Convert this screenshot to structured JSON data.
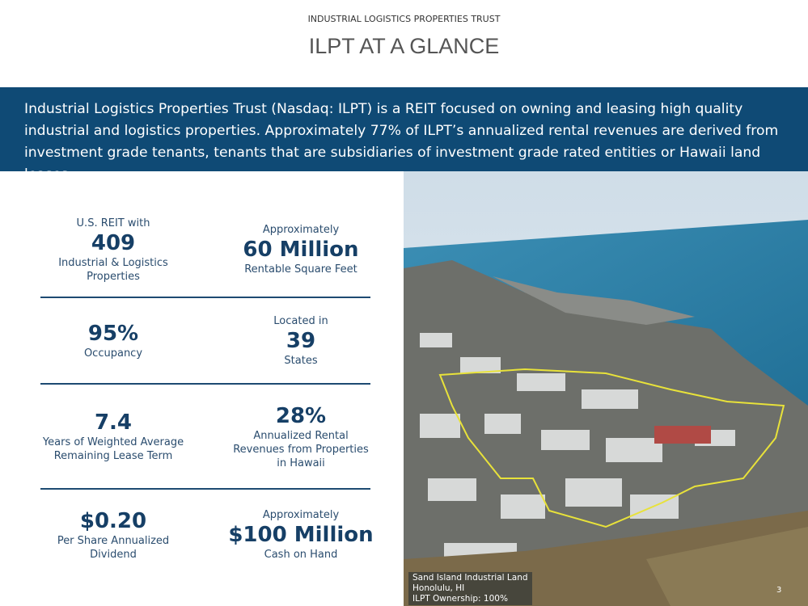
{
  "header": {
    "company": "INDUSTRIAL LOGISTICS PROPERTIES TRUST",
    "title": "ILPT AT A GLANCE"
  },
  "banner": {
    "text": "Industrial Logistics Properties Trust (Nasdaq: ILPT) is a REIT focused on owning and leasing high quality industrial and logistics properties.  Approximately 77% of ILPT’s annualized rental revenues are derived from investment grade tenants, tenants that are subsidiaries of investment grade rated entities or Hawaii land leases."
  },
  "stats": [
    {
      "prefix": "U.S. REIT with",
      "value": "409",
      "label": "Industrial & Logistics Properties"
    },
    {
      "prefix": "Approximately",
      "value": "60 Million",
      "label": "Rentable Square Feet"
    },
    {
      "value": "95%",
      "label": "Occupancy"
    },
    {
      "prefix": "Located in",
      "value": "39",
      "label": "States"
    },
    {
      "value": "7.4",
      "label": "Years of Weighted Average Remaining Lease Term"
    },
    {
      "value": "28%",
      "label": "Annualized Rental Revenues from Properties in Hawaii"
    },
    {
      "value": "$0.20",
      "label": "Per Share Annualized Dividend"
    },
    {
      "prefix": "Approximately",
      "value": "$100 Million",
      "label": "Cash on Hand"
    }
  ],
  "photo": {
    "caption": [
      "Sand Island Industrial Land",
      "Honolulu, HI",
      "ILPT Ownership: 100%"
    ]
  },
  "page_number": "3"
}
